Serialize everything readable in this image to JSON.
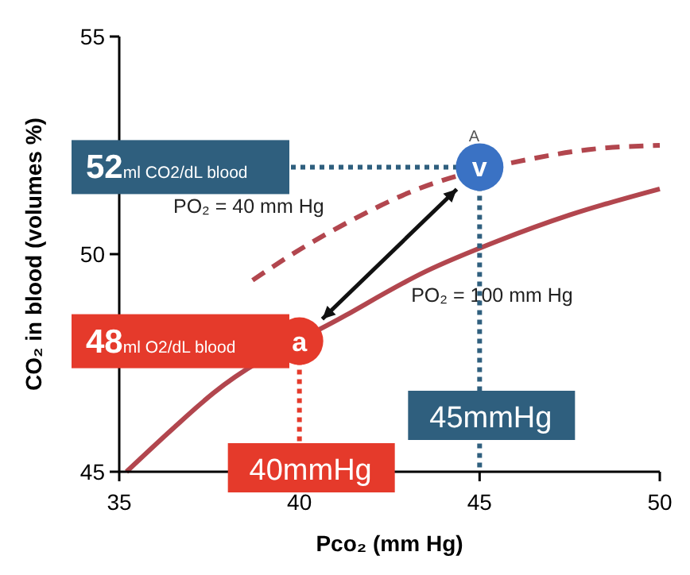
{
  "chart_data": {
    "type": "line",
    "xlabel": "Pco₂ (mm Hg)",
    "ylabel": "CO₂ in blood (volumes %)",
    "xlim": [
      35,
      50
    ],
    "ylim": [
      45,
      55
    ],
    "xticks": [
      35,
      40,
      45,
      50
    ],
    "yticks": [
      45,
      50,
      55
    ],
    "grid": false,
    "series": [
      {
        "name": "PO₂ = 40 mm Hg",
        "color": "#b2464e",
        "line_style": "dashed",
        "x": [
          38.7,
          40,
          41.5,
          43,
          46.5,
          48,
          50
        ],
        "values": [
          49.4,
          50.1,
          50.8,
          51.4,
          52.2,
          52.4,
          52.5
        ]
      },
      {
        "name": "PO₂ = 100 mm Hg",
        "color": "#b2464e",
        "line_style": "solid",
        "x": [
          35.2,
          36.5,
          37.6,
          41.3,
          43.5,
          45.5,
          47.5,
          50
        ],
        "values": [
          45.0,
          46.0,
          46.8,
          48.6,
          49.6,
          50.3,
          50.9,
          51.5
        ]
      },
      {
        "type": "scatter",
        "name": "a",
        "color": "#e53a2b",
        "marker": "circle",
        "x": [
          40
        ],
        "values": [
          48
        ]
      },
      {
        "type": "scatter",
        "name": "v",
        "color": "#3a72c4",
        "marker": "circle",
        "x": [
          45
        ],
        "values": [
          52
        ]
      }
    ],
    "annotations": [
      "52ml CO2/dL blood",
      "48ml O2/dL blood",
      {
        "text": "40mmHg",
        "x": 40
      },
      "45mmHg",
      {
        "text": "A",
        "x": 44.7,
        "y": 52.6
      }
    ]
  }
}
